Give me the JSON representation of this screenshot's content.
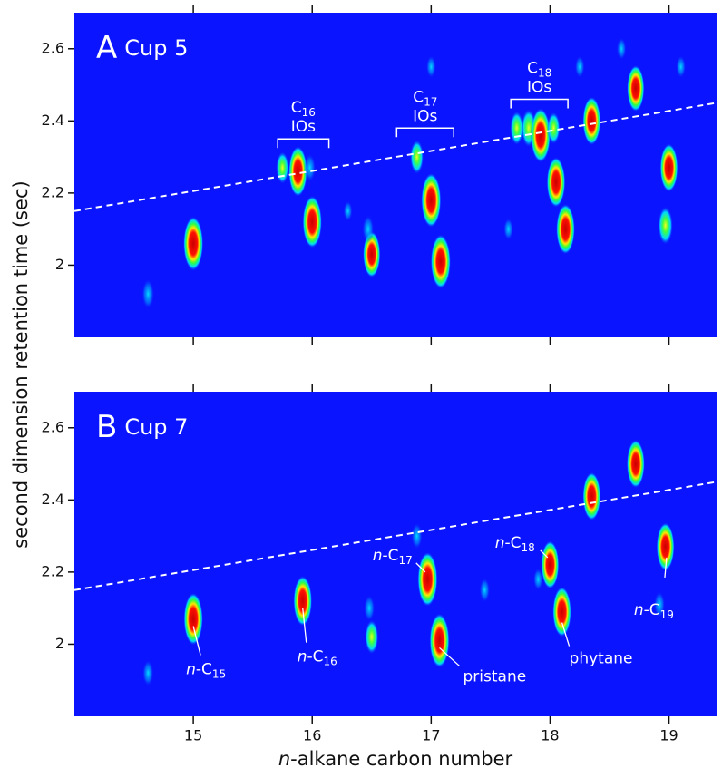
{
  "chart_data": [
    {
      "type": "peaks",
      "panel_letter": "A",
      "panel_title": "Cup 5",
      "background": "#0a14ff",
      "xlim": [
        14,
        19.4
      ],
      "ylim": [
        1.8,
        2.7
      ],
      "xticks": [
        15,
        16,
        17,
        18,
        19
      ],
      "yticks": [
        2,
        2.2,
        2.4,
        2.6
      ],
      "show_xtick_labels": false,
      "x": [
        14.62,
        15.0,
        15.88,
        15.75,
        15.98,
        16.0,
        16.5,
        16.47,
        16.88,
        17.0,
        17.08,
        17.72,
        17.82,
        17.92,
        18.05,
        18.03,
        18.13,
        18.35,
        18.72,
        18.97,
        19.0,
        17.0,
        18.6,
        17.65,
        16.3,
        18.25,
        19.1
      ],
      "values": [
        1.92,
        2.06,
        2.26,
        2.27,
        2.27,
        2.12,
        2.03,
        2.1,
        2.3,
        2.18,
        2.01,
        2.38,
        2.38,
        2.36,
        2.23,
        2.38,
        2.1,
        2.4,
        2.49,
        2.11,
        2.27,
        2.55,
        2.6,
        2.1,
        2.15,
        2.55,
        2.55
      ],
      "intensity": [
        0.4,
        1,
        0.9,
        0.45,
        0.35,
        0.95,
        0.8,
        0.35,
        0.5,
        1,
        1,
        0.5,
        0.6,
        1,
        0.9,
        0.45,
        0.9,
        0.85,
        0.8,
        0.6,
        0.85,
        0.2,
        0.2,
        0.2,
        0.15,
        0.2,
        0.2
      ],
      "reference_line": {
        "x": [
          14,
          19.4
        ],
        "y": [
          2.15,
          2.45
        ]
      },
      "brackets": [
        {
          "text": "C",
          "sub": "16",
          "text2": "IOs",
          "x": [
            15.71,
            16.14
          ],
          "y": 2.35
        },
        {
          "text": "C",
          "sub": "17",
          "text2": "IOs",
          "x": [
            16.71,
            17.19
          ],
          "y": 2.38
        },
        {
          "text": "C",
          "sub": "18",
          "text2": "IOs",
          "x": [
            17.67,
            18.15
          ],
          "y": 2.46
        }
      ]
    },
    {
      "type": "peaks",
      "panel_letter": "B",
      "panel_title": "Cup 7",
      "background": "#0a14ff",
      "xlim": [
        14,
        19.4
      ],
      "ylim": [
        1.8,
        2.7
      ],
      "xticks": [
        15,
        16,
        17,
        18,
        19
      ],
      "yticks": [
        2,
        2.2,
        2.4,
        2.6
      ],
      "show_xtick_labels": true,
      "x": [
        14.62,
        15.0,
        15.92,
        16.48,
        16.5,
        16.88,
        16.97,
        17.07,
        17.45,
        17.9,
        18.0,
        18.1,
        18.35,
        18.72,
        18.97,
        18.92
      ],
      "values": [
        1.92,
        2.07,
        2.12,
        2.1,
        2.02,
        2.3,
        2.18,
        2.01,
        2.15,
        2.18,
        2.22,
        2.09,
        2.41,
        2.5,
        2.27,
        2.11
      ],
      "intensity": [
        0.3,
        0.95,
        0.9,
        0.3,
        0.5,
        0.3,
        1,
        1,
        0.25,
        0.2,
        0.85,
        0.9,
        0.85,
        0.85,
        0.85,
        0.3
      ],
      "reference_line": {
        "x": [
          14,
          19.4
        ],
        "y": [
          2.15,
          2.45
        ]
      },
      "annotations": [
        {
          "italic": "n",
          "text": "-C",
          "sub": "15",
          "x": 15.0,
          "y": 2.05
        },
        {
          "italic": "n",
          "text": "-C",
          "sub": "16",
          "x": 15.92,
          "y": 2.1
        },
        {
          "italic": "n",
          "text": "-C",
          "sub": "17",
          "x": 16.95,
          "y": 2.2
        },
        {
          "text": "pristane",
          "x": 17.07,
          "y": 1.99
        },
        {
          "italic": "n",
          "text": "-C",
          "sub": "18",
          "x": 17.98,
          "y": 2.24
        },
        {
          "text": "phytane",
          "x": 18.1,
          "y": 2.06
        },
        {
          "italic": "n",
          "text": "-C",
          "sub": "19",
          "x": 18.98,
          "y": 2.24
        }
      ]
    }
  ],
  "ylabel": "second dimension retention time (sec)",
  "xlabel_italic": "n",
  "xlabel": "-alkane carbon number"
}
